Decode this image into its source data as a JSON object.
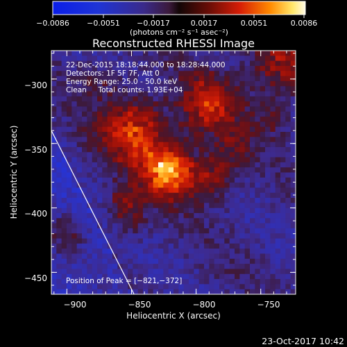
{
  "colorbar": {
    "ticks": [
      "−0.0086",
      "−0.0051",
      "−0.0017",
      "0.0017",
      "0.0051",
      "0.0086"
    ],
    "unit_label": "(photons cm⁻² s⁻¹ asec⁻²)"
  },
  "chart_data": {
    "type": "heatmap",
    "title": "Reconstructed RHESSI Image",
    "xlabel": "Heliocentric X (arcsec)",
    "ylabel": "Heliocentric Y (arcsec)",
    "xlim": [
      -912,
      -723
    ],
    "ylim": [
      -467,
      -278
    ],
    "xticks": [
      -900,
      -850,
      -800,
      -750
    ],
    "xtick_labels": [
      "−900",
      "−850",
      "−800",
      "−750"
    ],
    "yticks": [
      -300,
      -350,
      -400,
      -450
    ],
    "ytick_labels": [
      "−300",
      "−350",
      "−400",
      "−450"
    ],
    "colormap": "blue-purple-red-yellow-white",
    "value_range": [
      -0.0086,
      0.0086
    ],
    "peak": {
      "x": -821,
      "y": -372
    },
    "sources": [
      {
        "x": -821,
        "y": -372,
        "value": 0.0086,
        "sigma": 14
      },
      {
        "x": -848,
        "y": -340,
        "value": 0.006,
        "sigma": 18
      },
      {
        "x": -790,
        "y": -320,
        "value": 0.0052,
        "sigma": 16
      },
      {
        "x": -855,
        "y": -395,
        "value": 0.0034,
        "sigma": 9
      },
      {
        "x": -850,
        "y": -412,
        "value": 0.0026,
        "sigma": 8
      },
      {
        "x": -785,
        "y": -375,
        "value": 0.0042,
        "sigma": 12
      },
      {
        "x": -735,
        "y": -288,
        "value": 0.0044,
        "sigma": 18
      },
      {
        "x": -770,
        "y": -352,
        "value": 0.0022,
        "sigma": 10
      },
      {
        "x": -900,
        "y": -420,
        "value": 0.0028,
        "sigma": 10
      },
      {
        "x": -875,
        "y": -300,
        "value": 0.002,
        "sigma": 10
      },
      {
        "x": -740,
        "y": -330,
        "value": 0.0018,
        "sigma": 10
      }
    ],
    "limb_line": {
      "from": [
        -912,
        -340
      ],
      "to": [
        -848,
        -467
      ]
    },
    "annotations": [
      "22-Dec-2015 18:18:44.000 to 18:28:44.000",
      "Detectors: 1F 5F 7F, Att 0",
      "Energy Range: 25.0 - 50.0 keV",
      "Clean     Total counts: 1.93E+04"
    ],
    "peak_label": "Position of Peak = [−821,−372]"
  },
  "footer_timestamp": "23-Oct-2017 10:42"
}
